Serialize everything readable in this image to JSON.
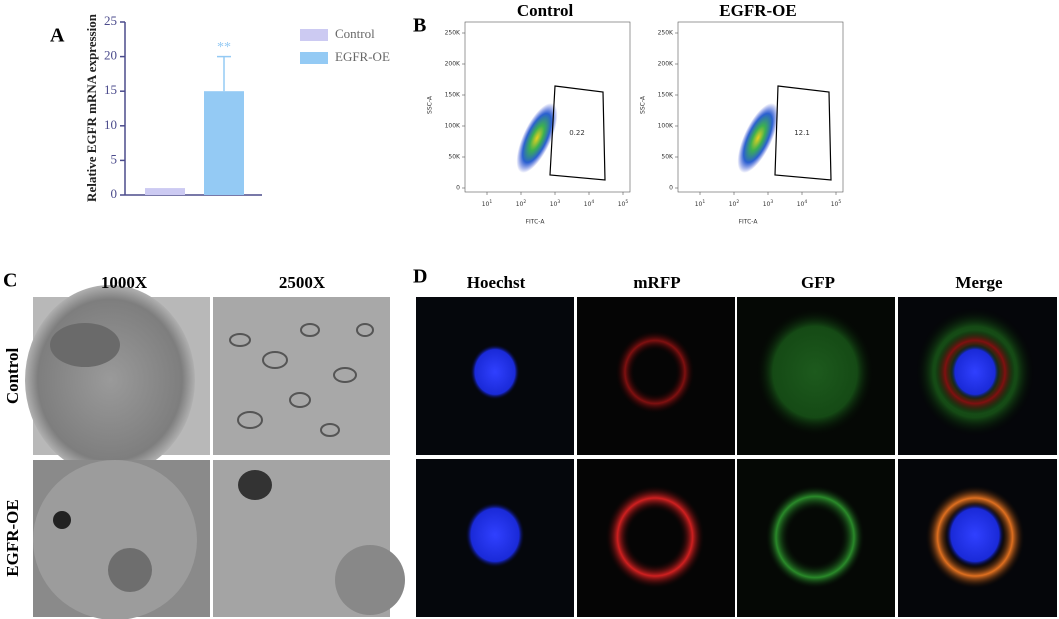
{
  "panel_a": {
    "label": "A"
  },
  "chart_data": {
    "type": "bar",
    "ylabel": "Relative EGFR mRNA expression",
    "ylim": [
      0,
      25
    ],
    "yticks": [
      0,
      5,
      10,
      15,
      20,
      25
    ],
    "series": [
      {
        "name": "Control",
        "color": "#cccaf2",
        "values": [
          1
        ]
      },
      {
        "name": "EGFR-OE",
        "color": "#94caf4",
        "values": [
          15
        ],
        "errors": [
          5
        ]
      }
    ],
    "annotation": "**",
    "legend": "upper right"
  },
  "panel_b": {
    "label": "B",
    "x_axis_label": "FITC-A",
    "y_axis_label": "SSC-A",
    "y_ticks": [
      "250K",
      "200K",
      "150K",
      "100K",
      "50K",
      "0"
    ],
    "x_ticks": [
      {
        "base": "10",
        "exp": "1"
      },
      {
        "base": "10",
        "exp": "2"
      },
      {
        "base": "10",
        "exp": "3"
      },
      {
        "base": "10",
        "exp": "4"
      },
      {
        "base": "10",
        "exp": "5"
      }
    ],
    "plots": [
      {
        "title": "Control",
        "gate_value": "0.22"
      },
      {
        "title": "EGFR-OE",
        "gate_value": "12.1"
      }
    ]
  },
  "panel_c": {
    "label": "C",
    "columns": [
      "1000X",
      "2500X"
    ],
    "rows": [
      "Control",
      "EGFR-OE"
    ]
  },
  "panel_d": {
    "label": "D",
    "columns": [
      "Hoechst",
      "mRFP",
      "GFP",
      "Merge"
    ]
  }
}
